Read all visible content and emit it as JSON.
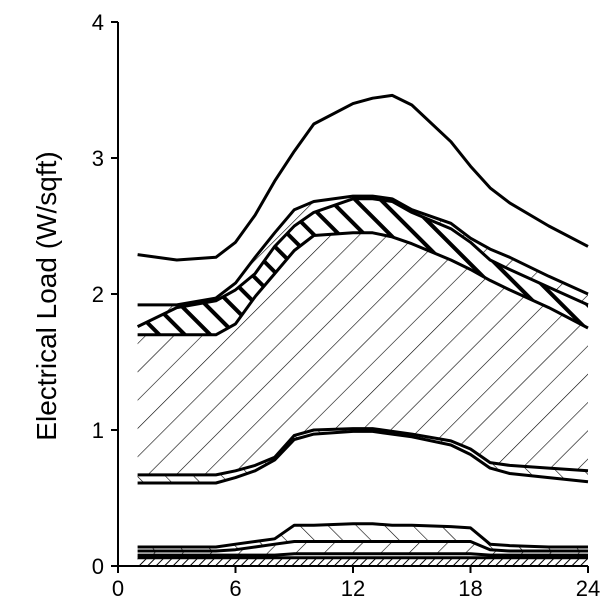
{
  "chart_data": {
    "type": "area",
    "title": "",
    "xlabel": "",
    "ylabel": "Electrical Load (W/sqft)",
    "xlim": [
      0,
      24
    ],
    "ylim": [
      0,
      4
    ],
    "x_ticks": [
      "0",
      "6",
      "12",
      "18",
      "24"
    ],
    "y_ticks": [
      "0",
      "1",
      "2",
      "3",
      "4"
    ],
    "grid": false,
    "legend": "none",
    "x": [
      1,
      3,
      5,
      6,
      7,
      8,
      9,
      10,
      12,
      13,
      14,
      15,
      17,
      18,
      19,
      20,
      22,
      24
    ],
    "boundaries": [
      {
        "values": [
          0.06,
          0.06,
          0.06,
          0.06,
          0.06,
          0.06,
          0.06,
          0.06,
          0.06,
          0.06,
          0.06,
          0.06,
          0.06,
          0.06,
          0.06,
          0.06,
          0.06,
          0.06
        ]
      },
      {
        "values": [
          0.08,
          0.08,
          0.08,
          0.08,
          0.08,
          0.08,
          0.09,
          0.09,
          0.09,
          0.09,
          0.09,
          0.09,
          0.09,
          0.09,
          0.08,
          0.08,
          0.08,
          0.08
        ]
      },
      {
        "values": [
          0.11,
          0.11,
          0.11,
          0.12,
          0.14,
          0.16,
          0.18,
          0.18,
          0.18,
          0.18,
          0.18,
          0.18,
          0.18,
          0.18,
          0.12,
          0.11,
          0.11,
          0.11
        ]
      },
      {
        "values": [
          0.14,
          0.14,
          0.14,
          0.16,
          0.18,
          0.2,
          0.3,
          0.3,
          0.31,
          0.31,
          0.3,
          0.3,
          0.29,
          0.28,
          0.16,
          0.15,
          0.14,
          0.14
        ]
      },
      {
        "values": [
          0.61,
          0.61,
          0.61,
          0.65,
          0.7,
          0.78,
          0.93,
          0.97,
          0.99,
          0.99,
          0.97,
          0.95,
          0.89,
          0.82,
          0.72,
          0.68,
          0.65,
          0.62
        ]
      },
      {
        "values": [
          0.67,
          0.67,
          0.67,
          0.7,
          0.74,
          0.8,
          0.96,
          1.0,
          1.01,
          1.01,
          0.99,
          0.97,
          0.92,
          0.86,
          0.76,
          0.74,
          0.72,
          0.7
        ]
      },
      {
        "values": [
          1.7,
          1.7,
          1.7,
          1.78,
          1.98,
          2.15,
          2.32,
          2.43,
          2.45,
          2.45,
          2.42,
          2.37,
          2.25,
          2.18,
          2.1,
          2.03,
          1.9,
          1.75
        ]
      },
      {
        "values": [
          1.76,
          1.9,
          1.95,
          2.03,
          2.15,
          2.35,
          2.5,
          2.6,
          2.7,
          2.7,
          2.68,
          2.6,
          2.48,
          2.38,
          2.25,
          2.18,
          2.05,
          1.92
        ]
      },
      {
        "values": [
          1.92,
          1.92,
          1.97,
          2.08,
          2.27,
          2.45,
          2.62,
          2.68,
          2.72,
          2.72,
          2.7,
          2.62,
          2.52,
          2.41,
          2.33,
          2.27,
          2.13,
          2.0
        ]
      },
      {
        "values": [
          2.29,
          2.25,
          2.27,
          2.38,
          2.58,
          2.83,
          3.05,
          3.25,
          3.4,
          3.44,
          3.46,
          3.39,
          3.12,
          2.94,
          2.78,
          2.67,
          2.5,
          2.35
        ]
      }
    ]
  }
}
